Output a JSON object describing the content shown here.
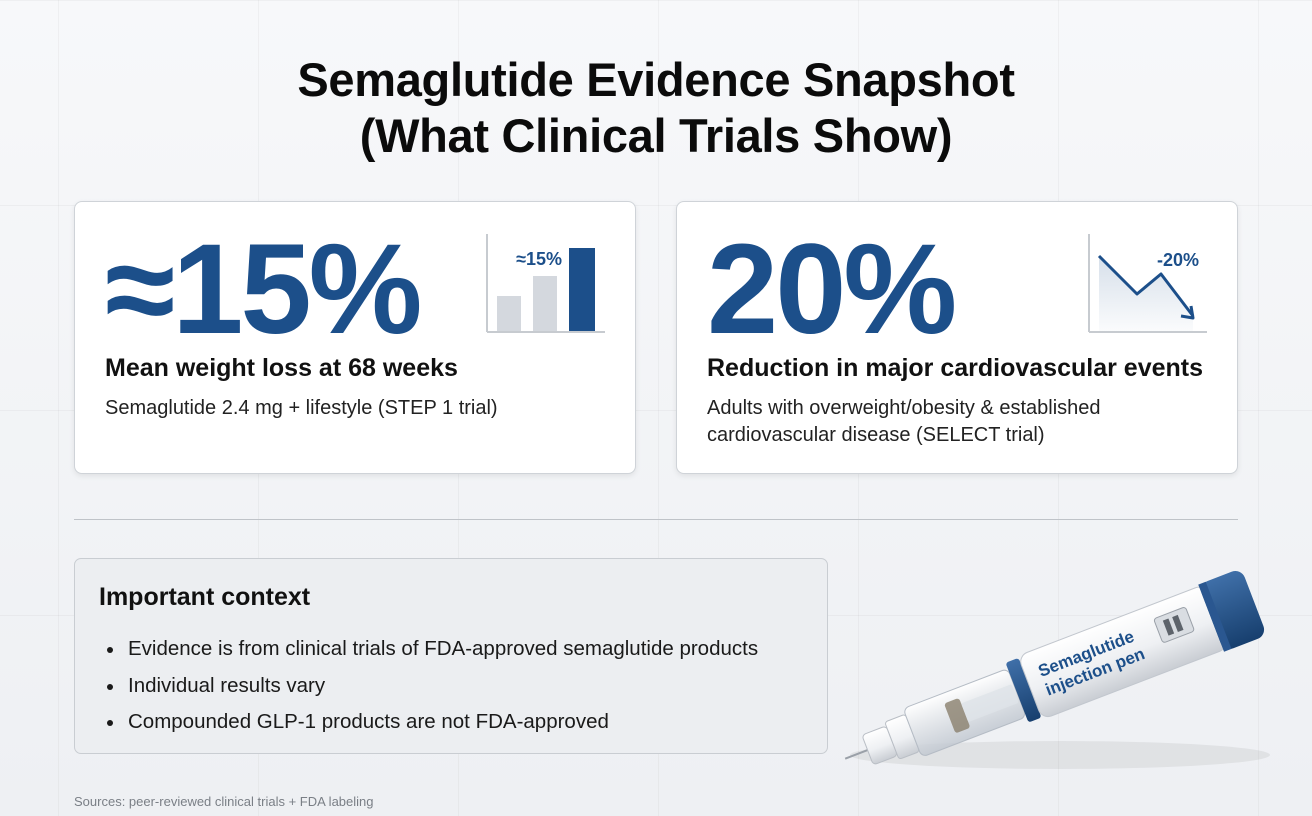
{
  "title": {
    "line1": "Semaglutide Evidence Snapshot",
    "line2": "(What Clinical Trials Show)"
  },
  "cards": [
    {
      "stat": "≈15%",
      "heading": "Mean weight loss at 68 weeks",
      "subtitle": "Semaglutide 2.4 mg + lifestyle (STEP 1 trial)",
      "mini_chart_label": "≈15%",
      "mini_chart_icon": "bar-chart-icon"
    },
    {
      "stat": "20%",
      "heading": "Reduction in major cardiovascular events",
      "subtitle": "Adults with overweight/obesity & established cardiovascular disease (SELECT trial)",
      "mini_chart_label": "-20%",
      "mini_chart_icon": "trend-down-icon"
    }
  ],
  "context": {
    "title": "Important context",
    "items": [
      "Evidence is from clinical trials of FDA-approved semaglutide products",
      "Individual results vary",
      "Compounded GLP-1 products are not FDA-approved"
    ]
  },
  "pen": {
    "label_line1": "Semaglutide",
    "label_line2": "injection pen",
    "icon": "injection-pen-image"
  },
  "sources": "Sources: peer-reviewed clinical trials + FDA labeling",
  "colors": {
    "accent": "#1c4f8a",
    "bar_muted": "#d4d8de",
    "background": "#f3f4f6"
  }
}
